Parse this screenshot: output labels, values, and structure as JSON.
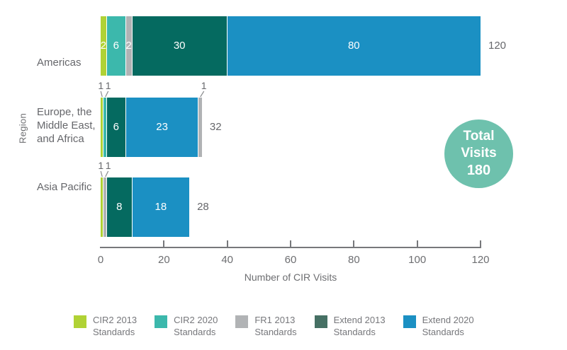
{
  "chart_data": {
    "type": "bar",
    "orientation": "horizontal-stacked",
    "xlabel": "Number of CIR Visits",
    "ylabel": "Region",
    "xlim": [
      0,
      120
    ],
    "xticks": [
      0,
      20,
      40,
      60,
      80,
      100,
      120
    ],
    "grid": false,
    "legend_position": "bottom",
    "legend": [
      {
        "key": "cir2_2013",
        "label": "CIR2 2013\nStandards",
        "color": "#b0d235"
      },
      {
        "key": "cir2_2020",
        "label": "CIR2 2020\nStandards",
        "color": "#3cb8ac"
      },
      {
        "key": "fr1_2013",
        "label": "FR1 2013\nStandards",
        "color": "#b1b3b5"
      },
      {
        "key": "extend_2013",
        "label": "Extend 2013\nStandards",
        "color": "#467064"
      },
      {
        "key": "extend_2020",
        "label": "Extend 2020\nStandards",
        "color": "#1b90c3"
      }
    ],
    "rows": [
      {
        "category": "Americas",
        "label_lines": [
          "Americas"
        ],
        "total": "120",
        "segments": [
          {
            "key": "cir2_2013",
            "value": 2,
            "color": "#b0d235",
            "label": "2"
          },
          {
            "key": "cir2_2020",
            "value": 6,
            "color": "#3cb8ac",
            "label": "6"
          },
          {
            "key": "fr1_2013",
            "value": 2,
            "color": "#b1b3b5",
            "label": "2"
          },
          {
            "key": "extend_2013",
            "value": 30,
            "color": "#056a60",
            "label": "30"
          },
          {
            "key": "extend_2020",
            "value": 80,
            "color": "#1b90c3",
            "label": "80"
          }
        ]
      },
      {
        "category": "Europe, the Middle East, and Africa",
        "label_lines": [
          "Europe, the",
          "Middle East,",
          "and Africa"
        ],
        "total": "32",
        "segments": [
          {
            "key": "cir2_2013",
            "value": 1,
            "color": "#b0d235",
            "callout": "1",
            "callout_dx": -2
          },
          {
            "key": "cir2_2020",
            "value": 1,
            "color": "#3cb8ac",
            "callout": "1",
            "callout_dx": 4
          },
          {
            "key": "extend_2013",
            "value": 6,
            "color": "#056a60",
            "label": "6"
          },
          {
            "key": "extend_2020",
            "value": 23,
            "color": "#1b90c3",
            "label": "23"
          },
          {
            "key": "fr1_2013",
            "value": 1,
            "color": "#b1b3b5",
            "callout": "1",
            "callout_dx": 5
          }
        ]
      },
      {
        "category": "Asia Pacific",
        "label_lines": [
          "Asia Pacific"
        ],
        "total": "28",
        "segments": [
          {
            "key": "cir2_2013",
            "value": 1,
            "color": "#b0d235",
            "callout": "1",
            "callout_dx": -2
          },
          {
            "key": "fr1_2013",
            "value": 1,
            "color": "#b1b3b5",
            "callout": "1",
            "callout_dx": 4
          },
          {
            "key": "extend_2013",
            "value": 8,
            "color": "#056a60",
            "label": "8"
          },
          {
            "key": "extend_2020",
            "value": 18,
            "color": "#1b90c3",
            "label": "18"
          }
        ]
      }
    ],
    "badge": {
      "line1": "Total Visits",
      "line2": "180",
      "color": "#6ec1ad"
    }
  }
}
